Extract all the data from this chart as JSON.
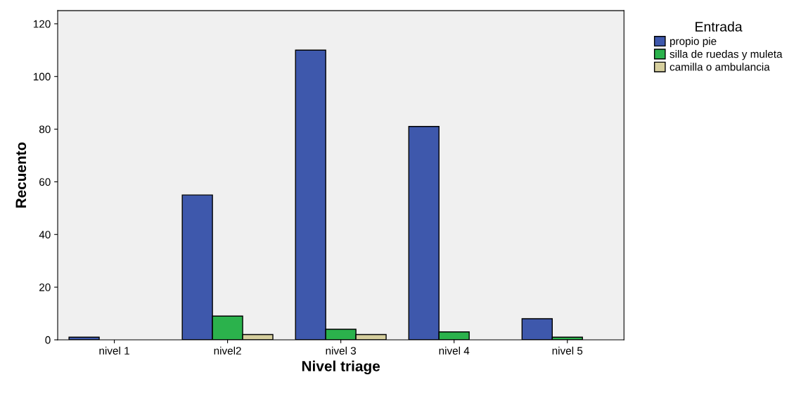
{
  "chart_data": {
    "type": "bar",
    "xlabel": "Nivel triage",
    "ylabel": "Recuento",
    "legend_title": "Entrada",
    "legend": "top right",
    "categories": [
      "nivel 1",
      "nivel2",
      "nivel 3",
      "nivel 4",
      "nivel 5"
    ],
    "series": [
      {
        "name": "propio pie",
        "color": "#3e58ac",
        "values": [
          1,
          55,
          110,
          81,
          8
        ]
      },
      {
        "name": "silla de ruedas y muleta",
        "color": "#2bb24c",
        "values": [
          0,
          9,
          4,
          3,
          1
        ]
      },
      {
        "name": "camilla o ambulancia",
        "color": "#d6cf9e",
        "values": [
          0,
          2,
          2,
          0,
          0
        ]
      }
    ],
    "ylim": [
      0,
      125
    ],
    "yticks": [
      0,
      20,
      40,
      60,
      80,
      100,
      120
    ],
    "grid": false
  }
}
